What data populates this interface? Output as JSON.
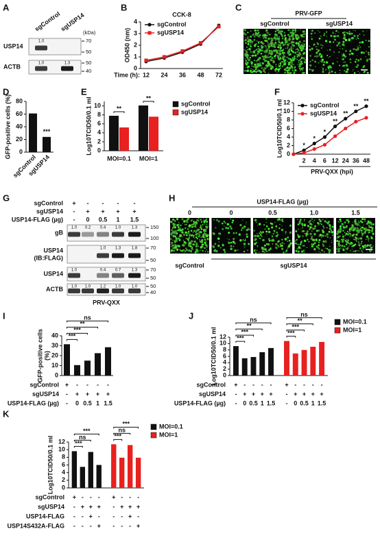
{
  "chart_data": [
    {
      "panel": "B",
      "type": "line",
      "title": "CCK-8",
      "ylabel": "OD450 (nm)",
      "xlabel": "Time (h):",
      "categories": [
        12,
        24,
        36,
        48,
        72
      ],
      "ylim": [
        0,
        4
      ],
      "yticks": [
        0,
        1,
        2,
        3,
        4
      ],
      "legend": "upper left",
      "series": [
        {
          "name": "sgControl",
          "color": "#111111",
          "marker": "circle",
          "values": [
            0.6,
            0.9,
            1.4,
            2.1,
            3.7
          ]
        },
        {
          "name": "sgUSP14",
          "color": "#e8201f",
          "marker": "square",
          "values": [
            0.7,
            1.0,
            1.5,
            2.2,
            3.6
          ]
        }
      ]
    },
    {
      "panel": "D",
      "type": "bar",
      "ylabel": "GFP-positive cells (%)",
      "categories": [
        "sgControl",
        "sgUSP14"
      ],
      "values": [
        61,
        24
      ],
      "color": "#111111",
      "ylim": [
        0,
        80
      ],
      "yticks": [
        0,
        20,
        40,
        60,
        80
      ],
      "significance": [
        null,
        "***"
      ]
    },
    {
      "panel": "E",
      "type": "bar",
      "ylabel": "Log10TCID50/0.1 ml",
      "categories": [
        "MOI=0.1",
        "MOI=1"
      ],
      "ylim": [
        0,
        11
      ],
      "yticks": [
        0,
        2,
        4,
        6,
        8,
        10
      ],
      "legend": "right",
      "series": [
        {
          "name": "sgControl",
          "color": "#111111",
          "values": [
            7.8,
            10.1
          ]
        },
        {
          "name": "sgUSP14",
          "color": "#e8201f",
          "values": [
            5.2,
            7.6
          ]
        }
      ],
      "significance": [
        "**",
        "**"
      ]
    },
    {
      "panel": "F",
      "type": "line",
      "ylabel": "Log10TCID50/0.1 ml",
      "xlabel": "PRV-QXX (hpi)",
      "categories": [
        null,
        2,
        4,
        6,
        12,
        24,
        36,
        48
      ],
      "ylim": [
        0,
        12
      ],
      "yticks": [
        0,
        2,
        4,
        6,
        8,
        10,
        12
      ],
      "legend": "upper left",
      "series": [
        {
          "name": "sgControl",
          "color": "#111111",
          "marker": "circle",
          "values": [
            0,
            0.9,
            2.5,
            4.0,
            6.5,
            8.3,
            10.0,
            11.2
          ]
        },
        {
          "name": "sgUSP14",
          "color": "#e8201f",
          "marker": "circle",
          "values": [
            0,
            0.3,
            1.2,
            2.2,
            4.2,
            6.0,
            7.6,
            8.5
          ]
        }
      ],
      "significance": [
        null,
        "*",
        "*",
        "*",
        "**",
        "**",
        "**",
        "**"
      ]
    },
    {
      "panel": "I",
      "type": "bar",
      "ylabel": [
        "GFP-positive cells",
        "(%)"
      ],
      "values": [
        31.5,
        10.5,
        15,
        22.5,
        28.5
      ],
      "color": "#111111",
      "ylim": [
        0,
        40
      ],
      "yticks": [
        0,
        10,
        20,
        30,
        40
      ],
      "significance": [
        "***",
        "***",
        "**",
        "ns"
      ],
      "conditions": [
        {
          "label": "sgControl",
          "values": [
            "+",
            "-",
            "-",
            "-",
            "-"
          ]
        },
        {
          "label": "sgUSP14",
          "values": [
            "-",
            "+",
            "+",
            "+",
            "+"
          ]
        },
        {
          "label": "USP14-FLAG (µg)",
          "values": [
            "-",
            "0",
            "0.5",
            "1",
            "1.5"
          ]
        }
      ]
    },
    {
      "panel": "J",
      "type": "bar",
      "ylabel": "Log10TCID50/0.1 ml",
      "ylim": [
        0,
        12
      ],
      "yticks": [
        0,
        2,
        4,
        6,
        8,
        10,
        12
      ],
      "legend": "upper right",
      "series": [
        {
          "name": "MOI=0.1",
          "color": "#111111",
          "values": [
            9.2,
            5.4,
            5.8,
            7.3,
            8.6
          ],
          "significance": [
            "***",
            "***",
            "**",
            "ns"
          ]
        },
        {
          "name": "MOI=1",
          "color": "#e8201f",
          "values": [
            10.8,
            6.9,
            8.0,
            9.0,
            10.5
          ],
          "significance": [
            "***",
            "***",
            "**",
            "ns"
          ]
        }
      ],
      "conditions": [
        {
          "label": "sgControl",
          "values": [
            "+",
            "-",
            "-",
            "-",
            "-",
            "+",
            "-",
            "-",
            "-",
            "-"
          ]
        },
        {
          "label": "sgUSP14",
          "values": [
            "-",
            "+",
            "+",
            "+",
            "+",
            "-",
            "+",
            "+",
            "+",
            "+"
          ]
        },
        {
          "label": "USP14-FLAG (µg)",
          "values": [
            "-",
            "0",
            "0.5",
            "1",
            "1.5",
            "-",
            "0",
            "0.5",
            "1",
            "1.5"
          ]
        }
      ]
    },
    {
      "panel": "K",
      "type": "bar",
      "ylabel": "Log10TCID50/0.1 ml",
      "ylim": [
        0,
        12
      ],
      "yticks": [
        0,
        2,
        4,
        6,
        8,
        10,
        12
      ],
      "legend": "upper right",
      "series": [
        {
          "name": "MOI=0.1",
          "color": "#111111",
          "values": [
            9.6,
            5.5,
            9.4,
            6.0
          ],
          "significance": [
            "***",
            "ns",
            "***"
          ]
        },
        {
          "name": "MOI=1",
          "color": "#e8201f",
          "values": [
            11.4,
            7.9,
            11.2,
            7.9
          ],
          "significance": [
            "***",
            "ns",
            "***"
          ]
        }
      ],
      "conditions": [
        {
          "label": "sgControl",
          "values": [
            "+",
            "-",
            "-",
            "-",
            "+",
            "-",
            "-",
            "-"
          ]
        },
        {
          "label": "sgUSP14",
          "values": [
            "-",
            "+",
            "+",
            "+",
            "-",
            "+",
            "+",
            "+"
          ]
        },
        {
          "label": "USP14-FLAG",
          "values": [
            "-",
            "-",
            "+",
            "-",
            "-",
            "-",
            "+",
            "-"
          ]
        },
        {
          "label": "USP14S432A-FLAG",
          "values": [
            "-",
            "-",
            "-",
            "+",
            "-",
            "-",
            "-",
            "+"
          ]
        }
      ]
    }
  ],
  "blots": [
    {
      "panel": "A",
      "lanes": [
        "sgControl",
        "sgUSP14"
      ],
      "unit": "(kDa)",
      "rows": [
        {
          "name": "USP14",
          "ratios": [
            "1.0",
            null
          ],
          "markers": [
            70,
            50
          ]
        },
        {
          "name": "ACTB",
          "ratios": [
            "1.0",
            "1.3"
          ],
          "markers": [
            50,
            40
          ]
        }
      ]
    },
    {
      "panel": "G",
      "conditions": [
        {
          "label": "sgControl",
          "values": [
            "+",
            "-",
            "-",
            "-",
            "-"
          ]
        },
        {
          "label": "sgUSP14",
          "values": [
            "-",
            "+",
            "+",
            "+",
            "+"
          ]
        },
        {
          "label": "USP14-FLAG (µg)",
          "values": [
            "-",
            "0",
            "0.5",
            "1",
            "1.5"
          ]
        }
      ],
      "rows": [
        {
          "name": "gB",
          "ratios": [
            "1.0",
            "0.2",
            "0.4",
            "1.0",
            "1.3"
          ],
          "markers": [
            150,
            100
          ]
        },
        {
          "name": "USP14",
          "detail": "(IB:FLAG)",
          "ratios": [
            null,
            null,
            "1.0",
            "1.3",
            "1.8"
          ],
          "markers": [
            70,
            50
          ]
        },
        {
          "name": "USP14",
          "ratios": [
            "1.0",
            null,
            "0.4",
            "0.7",
            "1.3"
          ],
          "markers": [
            70,
            50
          ]
        },
        {
          "name": "ACTB",
          "ratios": [
            "1.0",
            "1.0",
            "1.2",
            "1.0",
            "1.0"
          ],
          "markers": [
            50,
            40
          ]
        }
      ],
      "footer": "PRV-QXX"
    }
  ],
  "images": [
    {
      "panel": "C",
      "title": "PRV-GFP",
      "labels": [
        "sgControl",
        "sgUSP14"
      ]
    },
    {
      "panel": "H",
      "title": "USP14-FLAG (µg)",
      "labels": [
        "0",
        "0",
        "0.5",
        "1.0",
        "1.5"
      ],
      "groups": [
        "sgControl",
        "sgUSP14"
      ]
    }
  ]
}
